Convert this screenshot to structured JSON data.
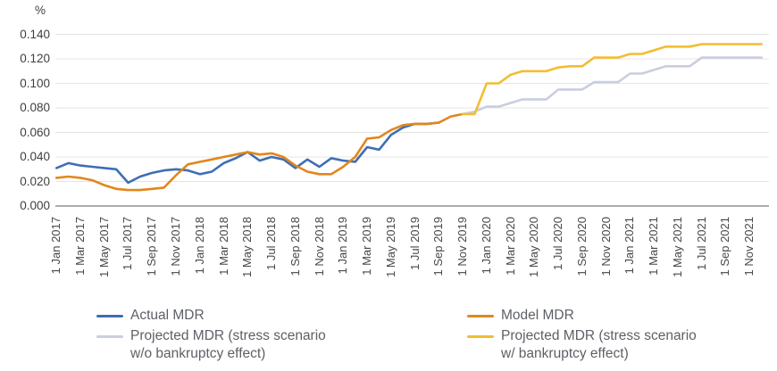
{
  "chart_data": {
    "type": "line",
    "title": "",
    "unit_label": "%",
    "xlabel": "",
    "ylabel": "%",
    "ylim": [
      0.0,
      0.145
    ],
    "grid": true,
    "x_frequency": "monthly",
    "x_range": [
      "1 Jan 2017",
      "1 Dec 2021"
    ],
    "x_tick_labels": [
      "1 Jan 2017",
      "1 Mar 2017",
      "1 May 2017",
      "1 Jul 2017",
      "1 Sep 2017",
      "1 Nov 2017",
      "1 Jan 2018",
      "1 Mar 2018",
      "1 May 2018",
      "1 Jul 2018",
      "1 Sep 2018",
      "1 Nov 2018",
      "1 Jan 2019",
      "1 Mar 2019",
      "1 May 2019",
      "1 Jul 2019",
      "1 Sep 2019",
      "1 Nov 2019",
      "1 Jan 2020",
      "1 Mar 2020",
      "1 May 2020",
      "1 Jul 2020",
      "1 Sep 2020",
      "1 Nov 2020",
      "1 Jan 2021",
      "1 Mar 2021",
      "1 May 2021",
      "1 Jul 2021",
      "1 Sep 2021",
      "1 Nov 2021"
    ],
    "y_ticks": [
      "0.000",
      "0.020",
      "0.040",
      "0.060",
      "0.080",
      "0.100",
      "0.120",
      "0.140"
    ],
    "legend_position": "bottom",
    "series": [
      {
        "name": "Actual MDR",
        "color": "#3e6eb5",
        "start_index": 0,
        "values": [
          0.031,
          0.035,
          0.033,
          0.032,
          0.031,
          0.03,
          0.019,
          0.024,
          0.027,
          0.029,
          0.03,
          0.029,
          0.026,
          0.028,
          0.035,
          0.039,
          0.044,
          0.037,
          0.04,
          0.038,
          0.031,
          0.038,
          0.032,
          0.039,
          0.037,
          0.036,
          0.048,
          0.046,
          0.058,
          0.064,
          0.067,
          0.067,
          0.068
        ]
      },
      {
        "name": "Model MDR",
        "color": "#e2861c",
        "start_index": 0,
        "values": [
          0.023,
          0.024,
          0.023,
          0.021,
          0.017,
          0.014,
          0.013,
          0.013,
          0.014,
          0.015,
          0.025,
          0.034,
          0.036,
          0.038,
          0.04,
          0.042,
          0.044,
          0.042,
          0.043,
          0.04,
          0.033,
          0.028,
          0.026,
          0.026,
          0.032,
          0.04,
          0.055,
          0.056,
          0.062,
          0.066,
          0.067,
          0.067,
          0.068,
          0.073,
          0.075
        ]
      },
      {
        "name": "Projected MDR (stress scenario w/o bankruptcy effect)",
        "color": "#c9cedf",
        "start_index": 34,
        "values": [
          0.075,
          0.077,
          0.081,
          0.081,
          0.084,
          0.087,
          0.087,
          0.087,
          0.095,
          0.095,
          0.095,
          0.101,
          0.101,
          0.101,
          0.108,
          0.108,
          0.111,
          0.114,
          0.114,
          0.114,
          0.121,
          0.121,
          0.121,
          0.121,
          0.121,
          0.121
        ]
      },
      {
        "name": "Projected MDR (stress scenario w/ bankruptcy effect)",
        "color": "#f2bd31",
        "start_index": 34,
        "values": [
          0.075,
          0.075,
          0.1,
          0.1,
          0.107,
          0.11,
          0.11,
          0.11,
          0.113,
          0.114,
          0.114,
          0.121,
          0.121,
          0.121,
          0.124,
          0.124,
          0.127,
          0.13,
          0.13,
          0.13,
          0.132,
          0.132,
          0.132,
          0.132,
          0.132,
          0.132
        ]
      }
    ]
  },
  "legend": {
    "items": [
      {
        "label": "Actual MDR"
      },
      {
        "lines": [
          "Projected MDR (stress scenario",
          "w/o bankruptcy effect)"
        ]
      },
      {
        "label": "Model MDR"
      },
      {
        "lines": [
          "Projected MDR (stress scenario",
          "w/  bankruptcy effect)"
        ]
      }
    ]
  },
  "colors": {
    "gridline": "#e4e4e4",
    "zero_axis": "#8f8f8f",
    "axis_text": "#3f3f3f",
    "legend_text": "#5d6066",
    "background": "#ffffff"
  }
}
